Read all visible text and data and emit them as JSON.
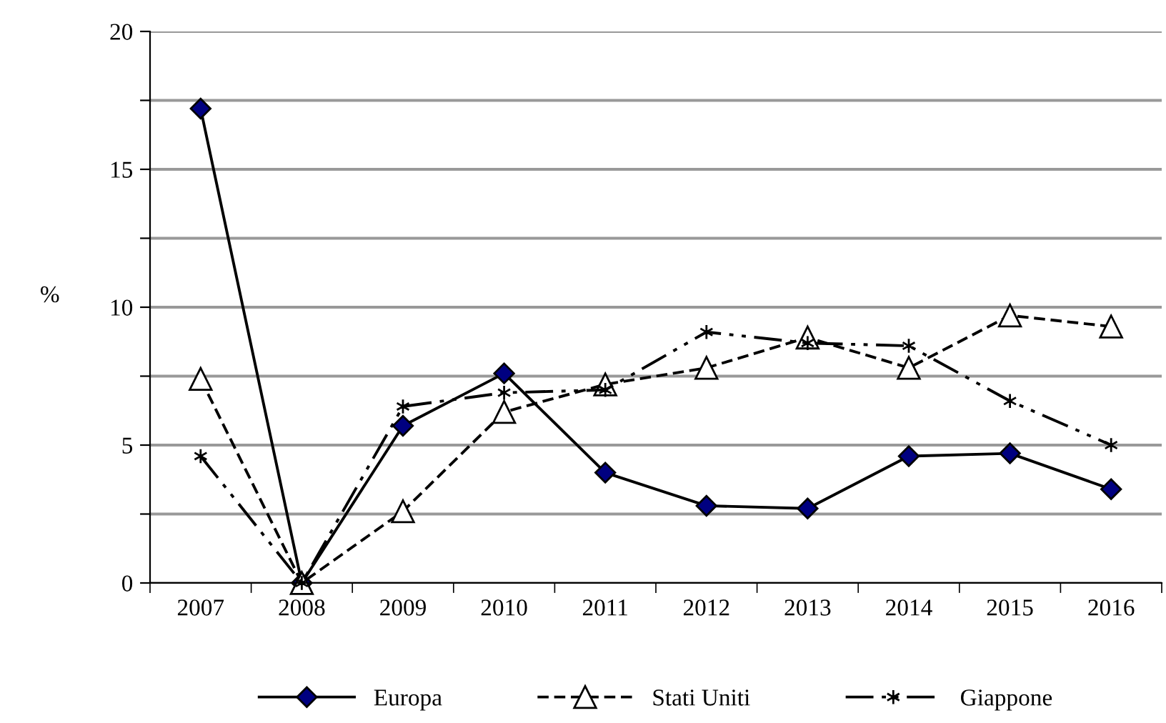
{
  "chart_data": {
    "type": "line",
    "ylabel": "%",
    "categories": [
      "2007",
      "2008",
      "2009",
      "2010",
      "2011",
      "2012",
      "2013",
      "2014",
      "2015",
      "2016"
    ],
    "series": [
      {
        "name": "Europa",
        "color": "#000080",
        "marker": "diamond",
        "line_style": "solid",
        "values": [
          17.2,
          0,
          5.7,
          7.6,
          4.0,
          2.8,
          2.7,
          4.6,
          4.7,
          3.4
        ]
      },
      {
        "name": "Stati Uniti",
        "color": "#000000",
        "marker": "triangle",
        "line_style": "dashed",
        "values": [
          7.4,
          0,
          2.6,
          6.2,
          7.2,
          7.8,
          8.9,
          7.8,
          9.7,
          9.3
        ]
      },
      {
        "name": "Giappone",
        "color": "#000000",
        "marker": "cross",
        "line_style": "dashdot",
        "values": [
          4.6,
          0,
          6.4,
          6.9,
          7.0,
          9.1,
          8.7,
          8.6,
          6.6,
          5.0
        ]
      }
    ],
    "ylim": [
      0,
      20
    ],
    "yticks": [
      0,
      {
        "value": 2.5,
        "label": null
      },
      5,
      {
        "value": 7.5,
        "label": null
      },
      10,
      {
        "value": 12.5,
        "label": null
      },
      15,
      {
        "value": 17.5,
        "label": null
      },
      20
    ],
    "grid": "y",
    "legend": "bottom"
  }
}
